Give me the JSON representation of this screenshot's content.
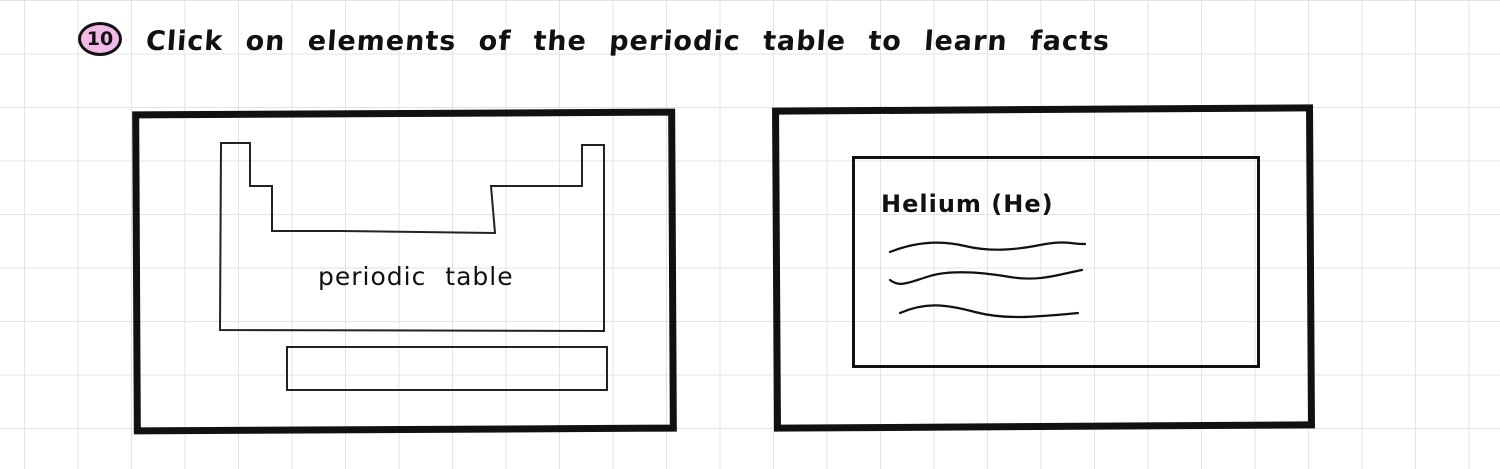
{
  "header": {
    "step_number": "10",
    "instruction": "Click on elements of the periodic table to learn facts"
  },
  "left_panel": {
    "periodic_table_label": "periodic table"
  },
  "right_panel": {
    "element_title": "Helium (He)"
  }
}
